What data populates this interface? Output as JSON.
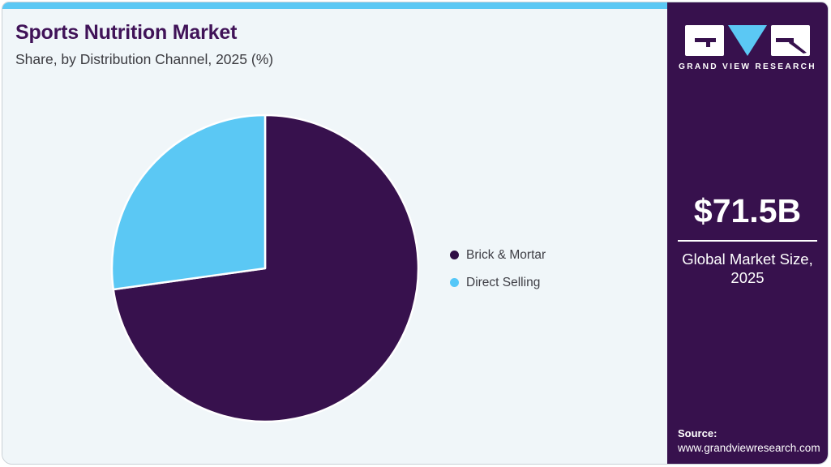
{
  "header": {
    "title": "Sports Nutrition Market",
    "subtitle": "Share, by Distribution Channel, 2025 (%)"
  },
  "chart_data": {
    "type": "pie",
    "title": "Sports Nutrition Market Share, by Distribution Channel, 2025 (%)",
    "categories": [
      "Brick & Mortar",
      "Direct Selling"
    ],
    "values": [
      72.8,
      27.2
    ],
    "unit": "%",
    "colors": [
      "#37114d",
      "#5bc8f4"
    ],
    "slice_border_color": "#ffffff",
    "start_angle_deg": -90,
    "direction": "clockwise",
    "legend_position": "right",
    "data_labels_visible": false
  },
  "legend": {
    "items": [
      {
        "label": "Brick & Mortar",
        "color": "#2f0d45"
      },
      {
        "label": "Direct Selling",
        "color": "#54c7f8"
      }
    ]
  },
  "sidebar": {
    "logo": {
      "brand": "GRAND VIEW RESEARCH"
    },
    "stat": {
      "value": "$71.5B",
      "label_line1": "Global Market Size,",
      "label_line2": "2025"
    },
    "source": {
      "heading": "Source:",
      "url": "www.grandviewresearch.com"
    }
  },
  "colors": {
    "accent_bar": "#5bc8f4",
    "sidebar_background": "#37114d",
    "card_background": "#f0f6f9",
    "card_border": "#c9d0d6",
    "title_text": "#401358",
    "subtitle_text": "#3b3b40"
  }
}
